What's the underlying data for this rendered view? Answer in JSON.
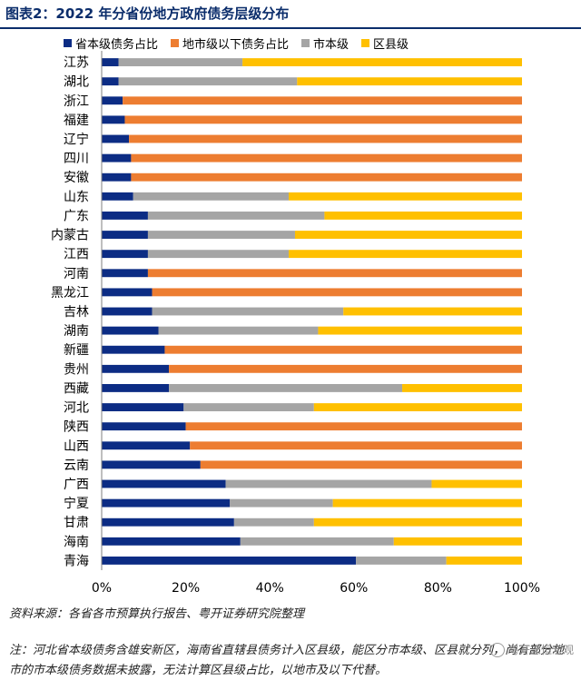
{
  "header": {
    "title": "图表2：2022 年分省份地方政府债务层级分布"
  },
  "footer": {
    "source": "资料来源：各省各市预算执行报告、粤开证券研究院整理",
    "note": "注：河北省本级债务含雄安新区，海南省直辖县债务计入区县级，能区分市本级、区县就分列，尚有部分地市的市本级债务数据未披露，无法计算区县级占比，以地市及以下代替。"
  },
  "watermark": {
    "text": "粤开志恒宏观",
    "icon": "wechat-icon"
  },
  "chart_data": {
    "type": "bar",
    "orientation": "horizontal",
    "stacked": true,
    "normalized": true,
    "xlim": [
      0,
      100
    ],
    "xticks": [
      "0%",
      "20%",
      "40%",
      "60%",
      "80%",
      "100%"
    ],
    "grid": false,
    "legend_position": "top",
    "categories": [
      "江苏",
      "湖北",
      "浙江",
      "福建",
      "辽宁",
      "四川",
      "安徽",
      "山东",
      "广东",
      "内蒙古",
      "江西",
      "河南",
      "黑龙江",
      "吉林",
      "湖南",
      "新疆",
      "贵州",
      "西藏",
      "河北",
      "陕西",
      "山西",
      "云南",
      "广西",
      "宁夏",
      "甘肃",
      "海南",
      "青海"
    ],
    "series": [
      {
        "name": "省本级债务占比",
        "color": "#0c2c84",
        "values": [
          4,
          4,
          5,
          5.5,
          6.5,
          7,
          7,
          7.5,
          11,
          11,
          11,
          11,
          12,
          12,
          13.5,
          15,
          16,
          16,
          19.5,
          20,
          21,
          23.5,
          29.5,
          30.5,
          31.5,
          33,
          60.5
        ]
      },
      {
        "name": "地市级以下债务占比",
        "color": "#ed7d31",
        "values": [
          0,
          0,
          95,
          94.5,
          93.5,
          93,
          93,
          0,
          0,
          0,
          0,
          89,
          88,
          0,
          0,
          85,
          84,
          0,
          0,
          80,
          79,
          76.5,
          0,
          0,
          0,
          0,
          0
        ]
      },
      {
        "name": "市本级",
        "color": "#a5a5a5",
        "values": [
          29.5,
          42.5,
          0,
          0,
          0,
          0,
          0,
          37,
          42,
          35,
          33.5,
          0,
          0,
          45.5,
          38,
          0,
          0,
          55.5,
          31,
          0,
          0,
          0,
          49,
          24.5,
          19,
          36.5,
          21.5
        ]
      },
      {
        "name": "区县级",
        "color": "#ffc000",
        "values": [
          66.5,
          53.5,
          0,
          0,
          0,
          0,
          0,
          55.5,
          47,
          54,
          55.5,
          0,
          0,
          42.5,
          48.5,
          0,
          0,
          28.5,
          49.5,
          0,
          0,
          0,
          21.5,
          45,
          49.5,
          30.5,
          18
        ]
      }
    ]
  }
}
